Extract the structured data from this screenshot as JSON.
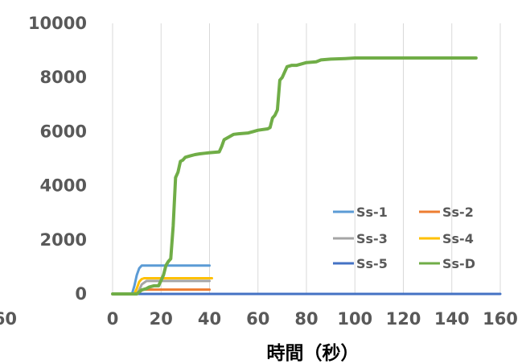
{
  "chart_data": {
    "type": "line",
    "title": "",
    "xlabel": "時間（秒）",
    "ylabel": "",
    "xlim": [
      0,
      160
    ],
    "ylim": [
      0,
      10000
    ],
    "x_ticks": [
      0,
      20,
      40,
      60,
      80,
      100,
      120,
      140,
      160
    ],
    "y_ticks": [
      0,
      2000,
      4000,
      6000,
      8000,
      10000
    ],
    "clipped_left_tick": "60",
    "grid": "vertical",
    "legend_position": "lower-right",
    "series": [
      {
        "name": "Ss-1",
        "color": "#5b9bd5",
        "x": [
          0,
          8,
          9,
          10,
          11,
          12,
          40
        ],
        "y": [
          0,
          0,
          300,
          700,
          950,
          1050,
          1050
        ]
      },
      {
        "name": "Ss-2",
        "color": "#ed7d31",
        "x": [
          0,
          10,
          11,
          12,
          13,
          40
        ],
        "y": [
          0,
          0,
          60,
          130,
          160,
          160
        ]
      },
      {
        "name": "Ss-3",
        "color": "#a5a5a5",
        "x": [
          0,
          10,
          11,
          12,
          14,
          40
        ],
        "y": [
          0,
          0,
          150,
          350,
          480,
          480
        ]
      },
      {
        "name": "Ss-4",
        "color": "#ffc000",
        "x": [
          0,
          9,
          10,
          11,
          12,
          13,
          41
        ],
        "y": [
          0,
          0,
          200,
          450,
          550,
          580,
          580
        ]
      },
      {
        "name": "Ss-5",
        "color": "#4472c4",
        "x": [
          0,
          160
        ],
        "y": [
          0,
          0
        ]
      },
      {
        "name": "Ss-D",
        "color": "#70ad47",
        "x": [
          0,
          10,
          12,
          14,
          15,
          17,
          19,
          20,
          21,
          22,
          23,
          24,
          25,
          26,
          27,
          28,
          29,
          30,
          32,
          34,
          36,
          38,
          40,
          44,
          45,
          46,
          48,
          50,
          52,
          56,
          58,
          60,
          64,
          65,
          66,
          67,
          68,
          69,
          70,
          72,
          74,
          76,
          80,
          84,
          86,
          90,
          96,
          100,
          120,
          150
        ],
        "y": [
          0,
          0,
          150,
          200,
          250,
          300,
          300,
          500,
          700,
          1050,
          1200,
          1300,
          2500,
          4300,
          4500,
          4900,
          4950,
          5050,
          5100,
          5150,
          5180,
          5200,
          5220,
          5250,
          5450,
          5700,
          5800,
          5900,
          5920,
          5950,
          6000,
          6050,
          6100,
          6150,
          6500,
          6600,
          6800,
          7900,
          8000,
          8400,
          8450,
          8450,
          8550,
          8580,
          8650,
          8680,
          8700,
          8720,
          8720,
          8720
        ]
      }
    ]
  }
}
